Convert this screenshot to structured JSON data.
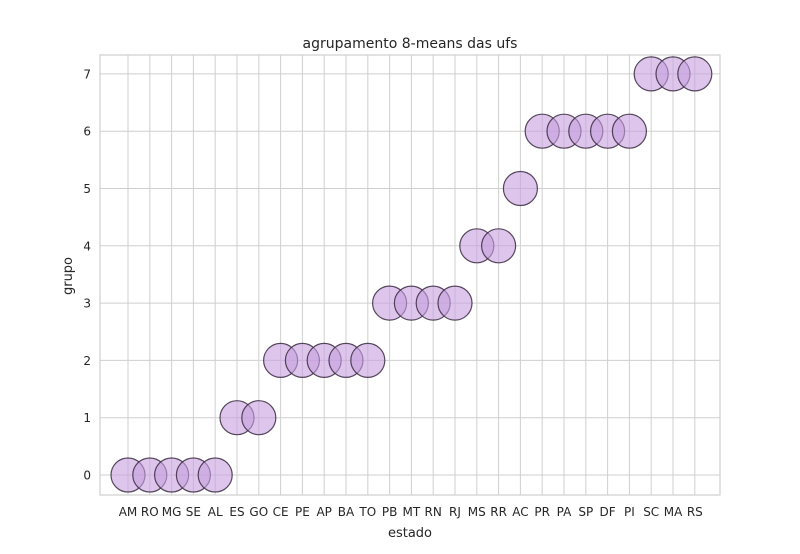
{
  "chart_data": {
    "type": "scatter",
    "title": "agrupamento 8-means das ufs",
    "xlabel": "estado",
    "ylabel": "grupo",
    "categories": [
      "AM",
      "RO",
      "MG",
      "SE",
      "AL",
      "ES",
      "GO",
      "CE",
      "PE",
      "AP",
      "BA",
      "TO",
      "PB",
      "MT",
      "RN",
      "RJ",
      "MS",
      "RR",
      "AC",
      "PR",
      "PA",
      "SP",
      "DF",
      "PI",
      "SC",
      "MA",
      "RS"
    ],
    "values": [
      0,
      0,
      0,
      0,
      0,
      1,
      1,
      2,
      2,
      2,
      2,
      2,
      3,
      3,
      3,
      3,
      4,
      4,
      5,
      6,
      6,
      6,
      6,
      6,
      7,
      7,
      7
    ],
    "y_ticks": [
      0,
      1,
      2,
      3,
      4,
      5,
      6,
      7
    ],
    "ylim": [
      -0.35,
      7.35
    ],
    "grid": true,
    "legend": "none",
    "colors": {
      "marker_fill": "#c79fe0",
      "marker_edge": "#3a2a3f",
      "grid": "#cfcfcf",
      "axes_edge": "#cfcfcf"
    }
  }
}
